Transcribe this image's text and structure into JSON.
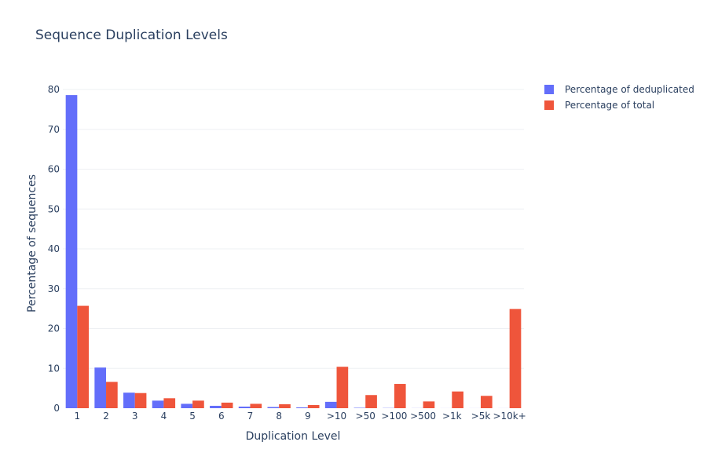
{
  "chart_data": {
    "type": "bar",
    "title": "Sequence Duplication Levels",
    "xlabel": "Duplication Level",
    "ylabel": "Percentage of sequences",
    "ylim": [
      0,
      80
    ],
    "yticks": [
      0,
      10,
      20,
      30,
      40,
      50,
      60,
      70,
      80
    ],
    "grid": true,
    "legend_position": "top-right",
    "categories": [
      "1",
      "2",
      "3",
      "4",
      "5",
      "6",
      "7",
      "8",
      "9",
      ">10",
      ">50",
      ">100",
      ">500",
      ">1k",
      ">5k",
      ">10k+"
    ],
    "series": [
      {
        "name": "Percentage of deduplicated",
        "color": "#636efa",
        "values": [
          78.6,
          10.2,
          3.9,
          1.9,
          1.1,
          0.6,
          0.4,
          0.3,
          0.2,
          1.6,
          0.1,
          0.05,
          0.02,
          0.01,
          0.01,
          0.01
        ]
      },
      {
        "name": "Percentage of total",
        "color": "#ef553b",
        "values": [
          25.7,
          6.6,
          3.8,
          2.5,
          1.9,
          1.4,
          1.1,
          1.0,
          0.8,
          10.4,
          3.3,
          6.1,
          1.7,
          4.2,
          3.1,
          24.9
        ]
      }
    ]
  }
}
